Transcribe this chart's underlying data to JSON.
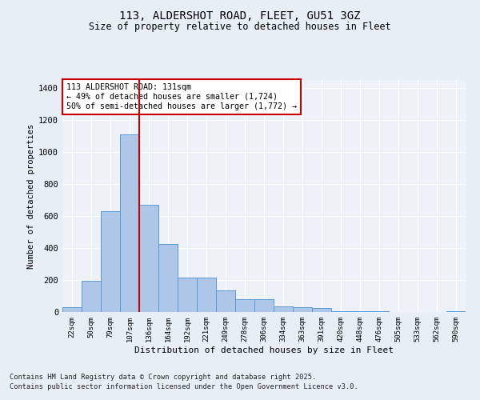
{
  "title_line1": "113, ALDERSHOT ROAD, FLEET, GU51 3GZ",
  "title_line2": "Size of property relative to detached houses in Fleet",
  "xlabel": "Distribution of detached houses by size in Fleet",
  "ylabel": "Number of detached properties",
  "categories": [
    "22sqm",
    "50sqm",
    "79sqm",
    "107sqm",
    "136sqm",
    "164sqm",
    "192sqm",
    "221sqm",
    "249sqm",
    "278sqm",
    "306sqm",
    "334sqm",
    "363sqm",
    "391sqm",
    "420sqm",
    "448sqm",
    "476sqm",
    "505sqm",
    "533sqm",
    "562sqm",
    "590sqm"
  ],
  "values": [
    30,
    195,
    630,
    1110,
    670,
    425,
    215,
    215,
    135,
    80,
    80,
    35,
    30,
    25,
    5,
    5,
    5,
    0,
    0,
    0,
    5
  ],
  "bar_color": "#aec6e8",
  "bar_edge_color": "#5b9bd5",
  "vline_index": 4,
  "vline_color": "#cc0000",
  "annotation_text": "113 ALDERSHOT ROAD: 131sqm\n← 49% of detached houses are smaller (1,724)\n50% of semi-detached houses are larger (1,772) →",
  "annotation_box_color": "#cc0000",
  "ylim": [
    0,
    1450
  ],
  "yticks": [
    0,
    200,
    400,
    600,
    800,
    1000,
    1200,
    1400
  ],
  "bg_color": "#e8eef5",
  "plot_bg_color": "#edf2f8",
  "grid_color": "#ffffff",
  "footnote_line1": "Contains HM Land Registry data © Crown copyright and database right 2025.",
  "footnote_line2": "Contains public sector information licensed under the Open Government Licence v3.0."
}
